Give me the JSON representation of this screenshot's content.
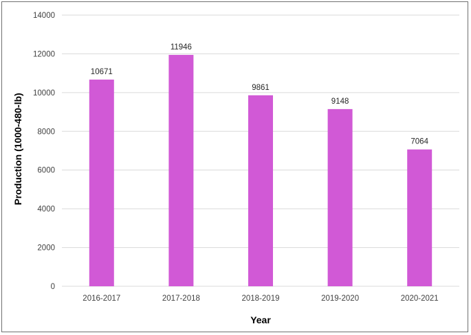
{
  "chart_data": {
    "type": "bar",
    "title": "",
    "xlabel": "Year",
    "ylabel": "Production (1000-480-lb)",
    "categories": [
      "2016-2017",
      "2017-2018",
      "2018-2019",
      "2019-2020",
      "2020-2021"
    ],
    "values": [
      10671,
      11946,
      9861,
      9148,
      7064
    ],
    "data_labels": [
      "10671",
      "11946",
      "9861",
      "9148",
      "7064"
    ],
    "ylim": [
      0,
      14000
    ],
    "yticks": [
      "0",
      "2000",
      "4000",
      "6000",
      "8000",
      "10000",
      "12000",
      "14000"
    ],
    "grid": true,
    "legend": "none",
    "bar_color": "#d159d6"
  }
}
